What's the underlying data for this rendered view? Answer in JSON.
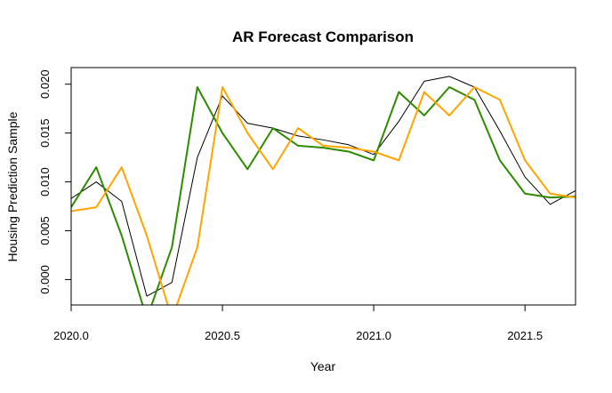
{
  "chart_data": {
    "type": "line",
    "title": "AR Forecast Comparison",
    "xlabel": "Year",
    "ylabel": "Housing Prediction Sample",
    "xlim": [
      2020.0,
      2021.667
    ],
    "ylim": [
      -0.0026,
      0.0217
    ],
    "xticks": [
      2020.0,
      2020.5,
      2021.0,
      2021.5
    ],
    "xtick_labels": [
      "2020.0",
      "2020.5",
      "2021.0",
      "2021.5"
    ],
    "yticks": [
      0.0,
      0.005,
      0.01,
      0.015,
      0.02
    ],
    "ytick_labels": [
      "0.000",
      "0.005",
      "0.010",
      "0.015",
      "0.020"
    ],
    "grid": false,
    "legend": "none",
    "x": [
      2020.0,
      2020.083,
      2020.167,
      2020.25,
      2020.333,
      2020.417,
      2020.5,
      2020.583,
      2020.667,
      2020.75,
      2020.833,
      2020.917,
      2021.0,
      2021.083,
      2021.167,
      2021.25,
      2021.333,
      2021.417,
      2021.5,
      2021.583,
      2021.667
    ],
    "series": [
      {
        "color": "#000000",
        "width": 1,
        "values": [
          0.0083,
          0.01,
          0.008,
          -0.0017,
          -0.0003,
          0.0125,
          0.0188,
          0.016,
          0.0155,
          0.0147,
          0.0143,
          0.0138,
          0.0128,
          0.0162,
          0.0203,
          0.0208,
          0.0197,
          0.0152,
          0.0105,
          0.0077,
          0.0091
        ]
      },
      {
        "color": "#2e8b00",
        "width": 2,
        "values": [
          0.0074,
          0.0115,
          0.0045,
          -0.004,
          0.0033,
          0.0197,
          0.015,
          0.0113,
          0.0155,
          0.0137,
          0.0135,
          0.0131,
          0.0122,
          0.0192,
          0.0168,
          0.0197,
          0.0184,
          0.0122,
          0.0088,
          0.0084,
          0.0085
        ]
      },
      {
        "color": "#ffa500",
        "width": 2,
        "values": [
          0.007,
          0.0074,
          0.0115,
          0.0045,
          -0.004,
          0.0033,
          0.0197,
          0.015,
          0.0113,
          0.0155,
          0.0137,
          0.0135,
          0.0131,
          0.0122,
          0.0192,
          0.0168,
          0.0197,
          0.0184,
          0.0122,
          0.0088,
          0.0084
        ]
      }
    ]
  }
}
